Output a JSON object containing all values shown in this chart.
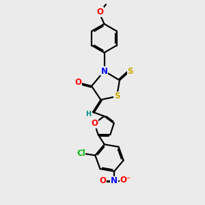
{
  "bg_color": "#ebebeb",
  "bond_color": "#000000",
  "atom_colors": {
    "O": "#ff0000",
    "N": "#0000ff",
    "S": "#ccaa00",
    "Cl": "#00bb00",
    "H": "#008888",
    "C": "#000000"
  },
  "fs": 8.5,
  "fsm": 7.0,
  "lw": 1.6
}
